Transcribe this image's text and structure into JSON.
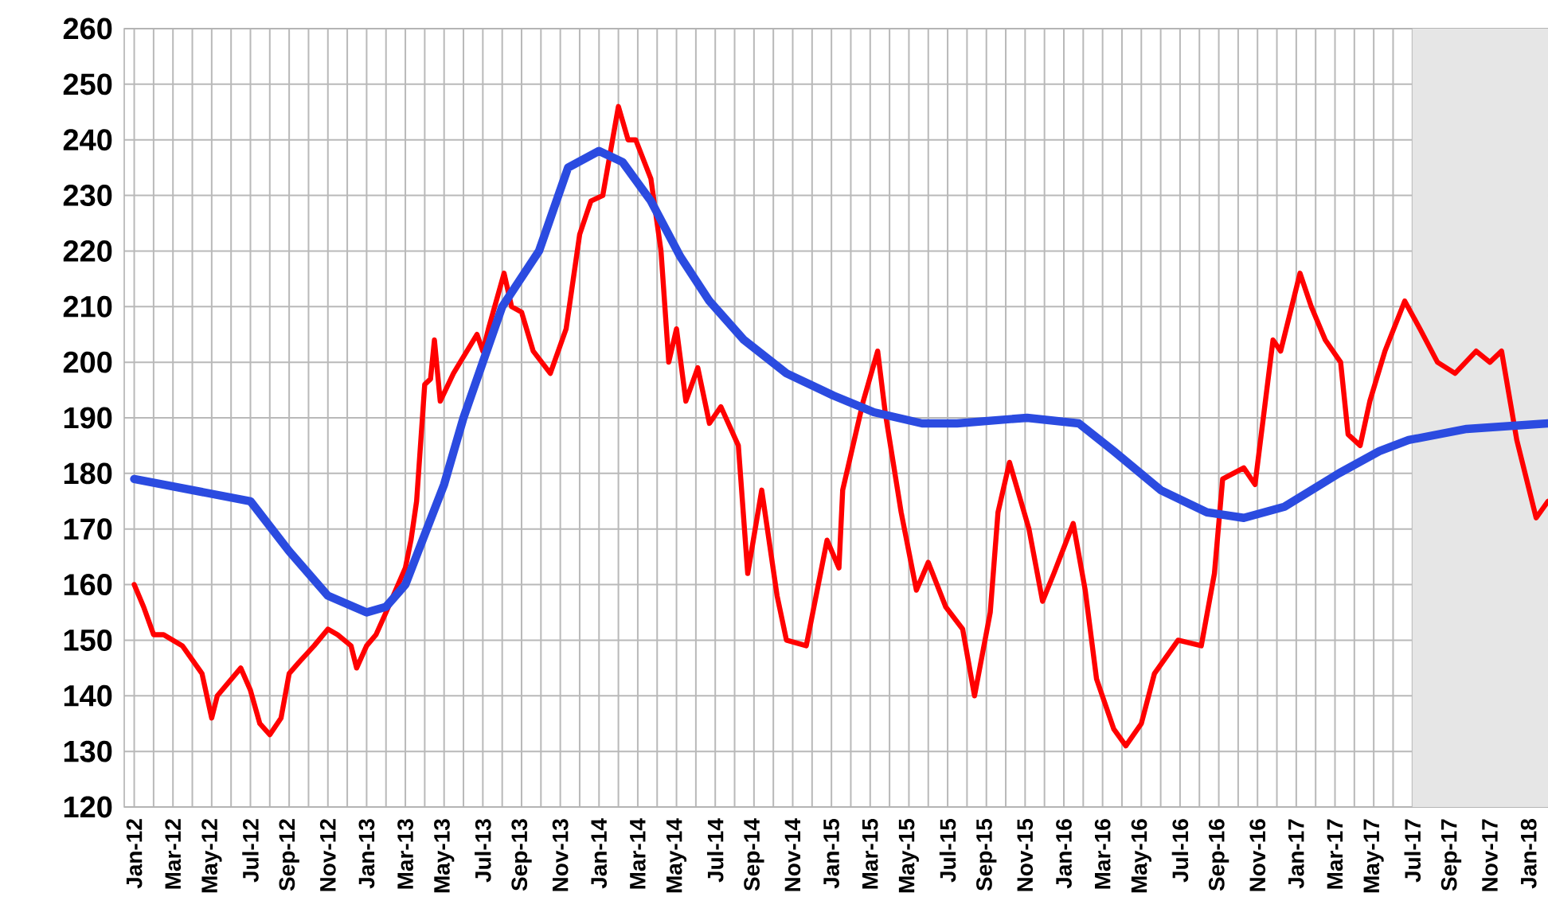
{
  "chart_data": {
    "type": "line",
    "xlim": [
      "2011-12-16",
      "2018-02-01"
    ],
    "ylim": [
      120,
      260
    ],
    "yticks": [
      120,
      130,
      140,
      150,
      160,
      170,
      180,
      190,
      200,
      210,
      220,
      230,
      240,
      250,
      260
    ],
    "xticks": [
      {
        "value": "2012-01",
        "label": "Jan-12"
      },
      {
        "value": "2012-03",
        "label": "Mar-12"
      },
      {
        "value": "2012-05",
        "label": "May-12"
      },
      {
        "value": "2012-07",
        "label": "Jul-12"
      },
      {
        "value": "2012-09",
        "label": "Sep-12"
      },
      {
        "value": "2012-11",
        "label": "Nov-12"
      },
      {
        "value": "2013-01",
        "label": "Jan-13"
      },
      {
        "value": "2013-03",
        "label": "Mar-13"
      },
      {
        "value": "2013-05",
        "label": "May-13"
      },
      {
        "value": "2013-07",
        "label": "Jul-13"
      },
      {
        "value": "2013-09",
        "label": "Sep-13"
      },
      {
        "value": "2013-11",
        "label": "Nov-13"
      },
      {
        "value": "2014-01",
        "label": "Jan-14"
      },
      {
        "value": "2014-03",
        "label": "Mar-14"
      },
      {
        "value": "2014-05",
        "label": "May-14"
      },
      {
        "value": "2014-07",
        "label": "Jul-14"
      },
      {
        "value": "2014-09",
        "label": "Sep-14"
      },
      {
        "value": "2014-11",
        "label": "Nov-14"
      },
      {
        "value": "2015-01",
        "label": "Jan-15"
      },
      {
        "value": "2015-03",
        "label": "Mar-15"
      },
      {
        "value": "2015-05",
        "label": "May-15"
      },
      {
        "value": "2015-07",
        "label": "Jul-15"
      },
      {
        "value": "2015-09",
        "label": "Sep-15"
      },
      {
        "value": "2015-11",
        "label": "Nov-15"
      },
      {
        "value": "2016-01",
        "label": "Jan-16"
      },
      {
        "value": "2016-03",
        "label": "Mar-16"
      },
      {
        "value": "2016-05",
        "label": "May-16"
      },
      {
        "value": "2016-07",
        "label": "Jul-16"
      },
      {
        "value": "2016-09",
        "label": "Sep-16"
      },
      {
        "value": "2016-11",
        "label": "Nov-16"
      },
      {
        "value": "2017-01",
        "label": "Jan-17"
      },
      {
        "value": "2017-03",
        "label": "Mar-17"
      },
      {
        "value": "2017-05",
        "label": "May-17"
      },
      {
        "value": "2017-07",
        "label": "Jul-17"
      },
      {
        "value": "2017-09",
        "label": "Sep-17"
      },
      {
        "value": "2017-11",
        "label": "Nov-17"
      },
      {
        "value": "2018-01",
        "label": "Jan-18"
      }
    ],
    "grid": true,
    "bands": [
      {
        "axis": "x",
        "from": "2017-07-01",
        "to": "2018-02-01",
        "color": "#e6e6e6"
      }
    ],
    "series": [
      {
        "color": "#ff0000",
        "x": [
          "2012-01-01",
          "2012-01-16",
          "2012-02-01",
          "2012-02-16",
          "2012-03-01",
          "2012-03-16",
          "2012-04-16",
          "2012-05-01",
          "2012-05-10",
          "2012-06-16",
          "2012-07-01",
          "2012-07-16",
          "2012-08-01",
          "2012-08-19",
          "2012-09-01",
          "2012-09-16",
          "2012-10-10",
          "2012-11-01",
          "2012-11-16",
          "2012-12-07",
          "2012-12-16",
          "2013-01-01",
          "2013-01-16",
          "2013-02-01",
          "2013-03-01",
          "2013-03-10",
          "2013-03-19",
          "2013-04-01",
          "2013-04-10",
          "2013-04-16",
          "2013-04-25",
          "2013-05-16",
          "2013-06-22",
          "2013-07-01",
          "2013-07-10",
          "2013-08-04",
          "2013-08-16",
          "2013-09-01",
          "2013-09-19",
          "2013-10-16",
          "2013-11-10",
          "2013-12-01",
          "2013-12-19",
          "2014-01-07",
          "2014-02-01",
          "2014-02-15",
          "2014-02-26",
          "2014-03-22",
          "2014-04-07",
          "2014-04-19",
          "2014-05-01",
          "2014-05-16",
          "2014-06-04",
          "2014-06-22",
          "2014-07-10",
          "2014-08-07",
          "2014-08-22",
          "2014-09-13",
          "2014-10-07",
          "2014-10-22",
          "2014-11-22",
          "2014-12-25",
          "2015-01-13",
          "2015-01-19",
          "2015-02-19",
          "2015-03-13",
          "2015-03-25",
          "2015-04-19",
          "2015-05-13",
          "2015-06-01",
          "2015-06-28",
          "2015-07-25",
          "2015-08-13",
          "2015-09-07",
          "2015-09-19",
          "2015-10-07",
          "2015-11-07",
          "2015-11-28",
          "2015-12-16",
          "2016-01-16",
          "2016-02-04",
          "2016-02-21",
          "2016-03-19",
          "2016-04-07",
          "2016-05-01",
          "2016-05-22",
          "2016-06-28",
          "2016-08-04",
          "2016-08-25",
          "2016-09-07",
          "2016-10-10",
          "2016-10-28",
          "2016-11-25",
          "2016-12-07",
          "2017-01-07",
          "2017-01-25",
          "2017-02-15",
          "2017-03-10",
          "2017-03-22",
          "2017-04-10",
          "2017-04-25",
          "2017-05-19",
          "2017-06-19",
          "2017-07-13",
          "2017-08-10",
          "2017-09-07",
          "2017-10-10",
          "2017-11-01",
          "2017-11-19",
          "2017-12-13",
          "2018-01-13",
          "2018-02-01"
        ],
        "values": [
          160,
          156,
          151,
          151,
          150,
          149,
          144,
          136,
          140,
          145,
          141,
          135,
          133,
          136,
          144,
          146,
          149,
          152,
          151,
          149,
          145,
          149,
          151,
          155,
          163,
          168,
          175,
          196,
          197,
          204,
          193,
          198,
          205,
          202,
          206,
          216,
          210,
          209,
          202,
          198,
          206,
          223,
          229,
          230,
          246,
          240,
          240,
          233,
          220,
          200,
          206,
          193,
          199,
          189,
          192,
          185,
          162,
          177,
          158,
          150,
          149,
          168,
          163,
          177,
          193,
          202,
          191,
          173,
          159,
          164,
          156,
          152,
          140,
          155,
          173,
          182,
          170,
          157,
          162,
          171,
          159,
          143,
          134,
          131,
          135,
          144,
          150,
          149,
          162,
          179,
          181,
          178,
          204,
          202,
          216,
          210,
          204,
          200,
          187,
          185,
          193,
          202,
          211,
          206,
          200,
          198,
          202,
          200,
          202,
          186,
          172,
          175
        ]
      },
      {
        "color": "#2b4be0",
        "x": [
          "2012-01-01",
          "2012-07-01",
          "2012-09-01",
          "2012-11-01",
          "2013-01-01",
          "2013-02-01",
          "2013-03-01",
          "2013-04-01",
          "2013-05-01",
          "2013-06-01",
          "2013-07-01",
          "2013-08-01",
          "2013-09-28",
          "2013-11-13",
          "2014-01-01",
          "2014-02-07",
          "2014-03-22",
          "2014-05-07",
          "2014-06-22",
          "2014-08-16",
          "2014-10-22",
          "2015-01-04",
          "2015-03-07",
          "2015-05-22",
          "2015-07-16",
          "2015-11-04",
          "2016-01-25",
          "2016-03-19",
          "2016-06-01",
          "2016-08-13",
          "2016-10-10",
          "2016-12-13",
          "2017-03-07",
          "2017-05-10",
          "2017-06-25",
          "2017-09-25",
          "2018-02-01"
        ],
        "values": [
          179,
          175,
          166,
          158,
          155,
          156,
          160,
          169,
          178,
          190,
          200,
          210,
          220,
          235,
          238,
          236,
          229,
          219,
          211,
          204,
          198,
          194,
          191,
          189,
          189,
          190,
          189,
          184,
          177,
          173,
          172,
          174,
          180,
          184,
          186,
          188,
          189
        ]
      }
    ]
  }
}
